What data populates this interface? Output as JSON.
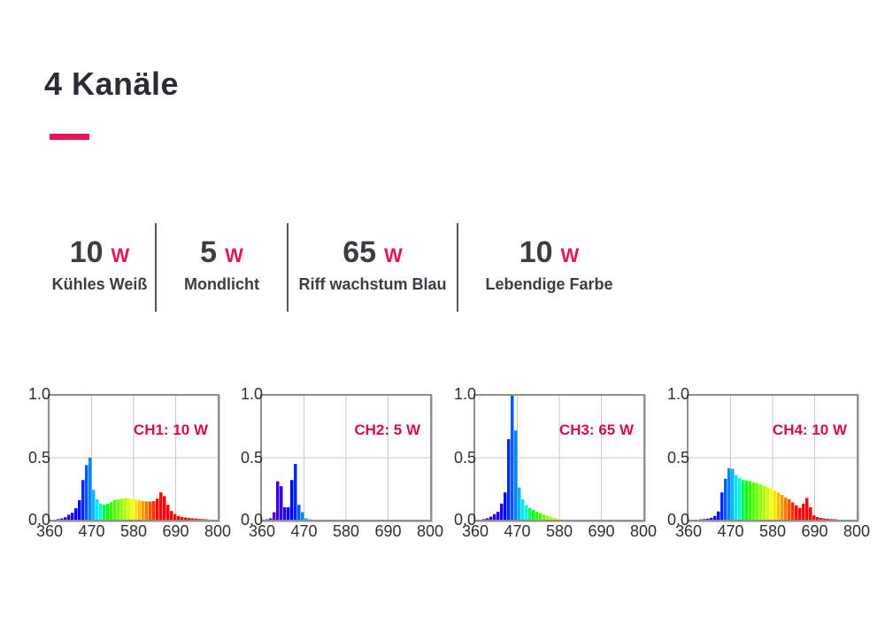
{
  "header": {
    "title": "4 Kanäle",
    "accent_color": "#e8155a"
  },
  "channels": [
    {
      "watt": "10",
      "unit": "W",
      "name": "Kühles Weiß"
    },
    {
      "watt": "5",
      "unit": "W",
      "name": "Mondlicht"
    },
    {
      "watt": "65",
      "unit": "W",
      "name": "Riff wachstum Blau"
    },
    {
      "watt": "10",
      "unit": "W",
      "name": "Lebendige Farbe"
    }
  ],
  "chart_data": [
    {
      "type": "area",
      "title": "CH1: 10 W",
      "label_color": "#d40e4e",
      "xlim": [
        360,
        800
      ],
      "ylim": [
        0,
        1
      ],
      "x_ticks": [
        "360",
        "470",
        "580",
        "690",
        "800"
      ],
      "y_ticks": [
        "1.0",
        "0.5",
        "0.0"
      ],
      "grid": true,
      "points": [
        [
          360,
          0
        ],
        [
          385,
          0.005
        ],
        [
          395,
          0.01
        ],
        [
          405,
          0.02
        ],
        [
          415,
          0.04
        ],
        [
          425,
          0.07
        ],
        [
          435,
          0.12
        ],
        [
          445,
          0.22
        ],
        [
          452,
          0.32
        ],
        [
          458,
          0.44
        ],
        [
          462,
          0.5
        ],
        [
          466,
          0.44
        ],
        [
          470,
          0.34
        ],
        [
          475,
          0.24
        ],
        [
          482,
          0.165
        ],
        [
          490,
          0.13
        ],
        [
          500,
          0.12
        ],
        [
          510,
          0.125
        ],
        [
          520,
          0.14
        ],
        [
          535,
          0.16
        ],
        [
          550,
          0.17
        ],
        [
          560,
          0.175
        ],
        [
          575,
          0.17
        ],
        [
          590,
          0.16
        ],
        [
          605,
          0.15
        ],
        [
          620,
          0.145
        ],
        [
          635,
          0.15
        ],
        [
          645,
          0.17
        ],
        [
          652,
          0.21
        ],
        [
          656,
          0.22
        ],
        [
          660,
          0.19
        ],
        [
          668,
          0.12
        ],
        [
          675,
          0.07
        ],
        [
          685,
          0.045
        ],
        [
          695,
          0.03
        ],
        [
          710,
          0.02
        ],
        [
          730,
          0.012
        ],
        [
          755,
          0.006
        ],
        [
          780,
          0.002
        ],
        [
          800,
          0
        ]
      ]
    },
    {
      "type": "area",
      "title": "CH2: 5 W",
      "label_color": "#d40e4e",
      "xlim": [
        360,
        800
      ],
      "ylim": [
        0,
        1
      ],
      "x_ticks": [
        "360",
        "470",
        "580",
        "690",
        "800"
      ],
      "y_ticks": [
        "1.0",
        "0.5",
        "0.0"
      ],
      "grid": true,
      "points": [
        [
          360,
          0
        ],
        [
          380,
          0.005
        ],
        [
          388,
          0.02
        ],
        [
          394,
          0.06
        ],
        [
          399,
          0.15
        ],
        [
          403,
          0.27
        ],
        [
          406,
          0.31
        ],
        [
          409,
          0.27
        ],
        [
          413,
          0.17
        ],
        [
          418,
          0.1
        ],
        [
          424,
          0.08
        ],
        [
          430,
          0.1
        ],
        [
          436,
          0.18
        ],
        [
          441,
          0.32
        ],
        [
          445,
          0.45
        ],
        [
          448,
          0.4
        ],
        [
          452,
          0.25
        ],
        [
          457,
          0.12
        ],
        [
          462,
          0.06
        ],
        [
          468,
          0.03
        ],
        [
          475,
          0.012
        ],
        [
          485,
          0.004
        ],
        [
          500,
          0
        ],
        [
          800,
          0
        ]
      ]
    },
    {
      "type": "area",
      "title": "CH3: 65 W",
      "label_color": "#d40e4e",
      "xlim": [
        360,
        800
      ],
      "ylim": [
        0,
        1
      ],
      "x_ticks": [
        "360",
        "470",
        "580",
        "690",
        "800"
      ],
      "y_ticks": [
        "1.0",
        "0.5",
        "0.0"
      ],
      "grid": true,
      "points": [
        [
          360,
          0
        ],
        [
          385,
          0.005
        ],
        [
          395,
          0.012
        ],
        [
          405,
          0.025
        ],
        [
          415,
          0.045
        ],
        [
          425,
          0.08
        ],
        [
          433,
          0.13
        ],
        [
          440,
          0.22
        ],
        [
          446,
          0.4
        ],
        [
          450,
          0.65
        ],
        [
          453,
          0.88
        ],
        [
          456,
          1.0
        ],
        [
          459,
          0.93
        ],
        [
          462,
          0.72
        ],
        [
          466,
          0.5
        ],
        [
          470,
          0.36
        ],
        [
          475,
          0.26
        ],
        [
          480,
          0.2
        ],
        [
          487,
          0.15
        ],
        [
          495,
          0.115
        ],
        [
          505,
          0.09
        ],
        [
          515,
          0.075
        ],
        [
          525,
          0.06
        ],
        [
          535,
          0.048
        ],
        [
          545,
          0.035
        ],
        [
          555,
          0.025
        ],
        [
          565,
          0.015
        ],
        [
          575,
          0.008
        ],
        [
          585,
          0.003
        ],
        [
          600,
          0
        ],
        [
          800,
          0
        ]
      ]
    },
    {
      "type": "area",
      "title": "CH4: 10 W",
      "label_color": "#d40e4e",
      "xlim": [
        360,
        800
      ],
      "ylim": [
        0,
        1
      ],
      "x_ticks": [
        "360",
        "470",
        "580",
        "690",
        "800"
      ],
      "y_ticks": [
        "1.0",
        "0.5",
        "0.0"
      ],
      "grid": true,
      "points": [
        [
          360,
          0
        ],
        [
          395,
          0.003
        ],
        [
          410,
          0.008
        ],
        [
          420,
          0.015
        ],
        [
          430,
          0.03
        ],
        [
          438,
          0.06
        ],
        [
          445,
          0.12
        ],
        [
          452,
          0.22
        ],
        [
          458,
          0.33
        ],
        [
          463,
          0.39
        ],
        [
          468,
          0.415
        ],
        [
          473,
          0.41
        ],
        [
          478,
          0.385
        ],
        [
          485,
          0.36
        ],
        [
          492,
          0.335
        ],
        [
          500,
          0.32
        ],
        [
          510,
          0.315
        ],
        [
          520,
          0.31
        ],
        [
          530,
          0.3
        ],
        [
          540,
          0.295
        ],
        [
          550,
          0.285
        ],
        [
          560,
          0.27
        ],
        [
          570,
          0.26
        ],
        [
          580,
          0.245
        ],
        [
          590,
          0.23
        ],
        [
          600,
          0.21
        ],
        [
          610,
          0.19
        ],
        [
          620,
          0.165
        ],
        [
          630,
          0.14
        ],
        [
          640,
          0.115
        ],
        [
          648,
          0.095
        ],
        [
          655,
          0.085
        ],
        [
          660,
          0.09
        ],
        [
          665,
          0.13
        ],
        [
          669,
          0.175
        ],
        [
          672,
          0.15
        ],
        [
          676,
          0.1
        ],
        [
          681,
          0.06
        ],
        [
          688,
          0.035
        ],
        [
          695,
          0.022
        ],
        [
          705,
          0.014
        ],
        [
          720,
          0.008
        ],
        [
          740,
          0.004
        ],
        [
          765,
          0.001
        ],
        [
          800,
          0
        ]
      ]
    }
  ]
}
